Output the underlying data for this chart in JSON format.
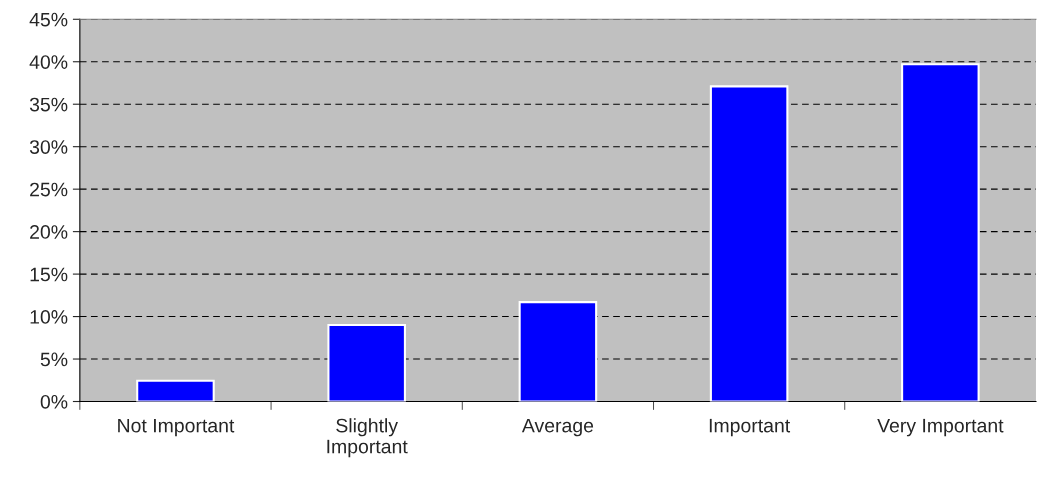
{
  "chart_data": {
    "type": "bar",
    "categories": [
      "Not Important",
      "Slightly\nImportant",
      "Average",
      "Important",
      "Very Important"
    ],
    "values": [
      2.45,
      9.0,
      11.7,
      37.1,
      39.7
    ],
    "color": "#0000ff",
    "ylim": [
      0,
      45
    ],
    "yticks": [
      {
        "value": 0,
        "label": "0%"
      },
      {
        "value": 5,
        "label": "5%"
      },
      {
        "value": 10,
        "label": "10%"
      },
      {
        "value": 15,
        "label": "15%"
      },
      {
        "value": 20,
        "label": "20%"
      },
      {
        "value": 25,
        "label": "25%"
      },
      {
        "value": 30,
        "label": "30%"
      },
      {
        "value": 35,
        "label": "35%"
      },
      {
        "value": 40,
        "label": "40%"
      },
      {
        "value": 45,
        "label": "45%"
      }
    ],
    "grid": "y",
    "line_style": "dashed"
  }
}
